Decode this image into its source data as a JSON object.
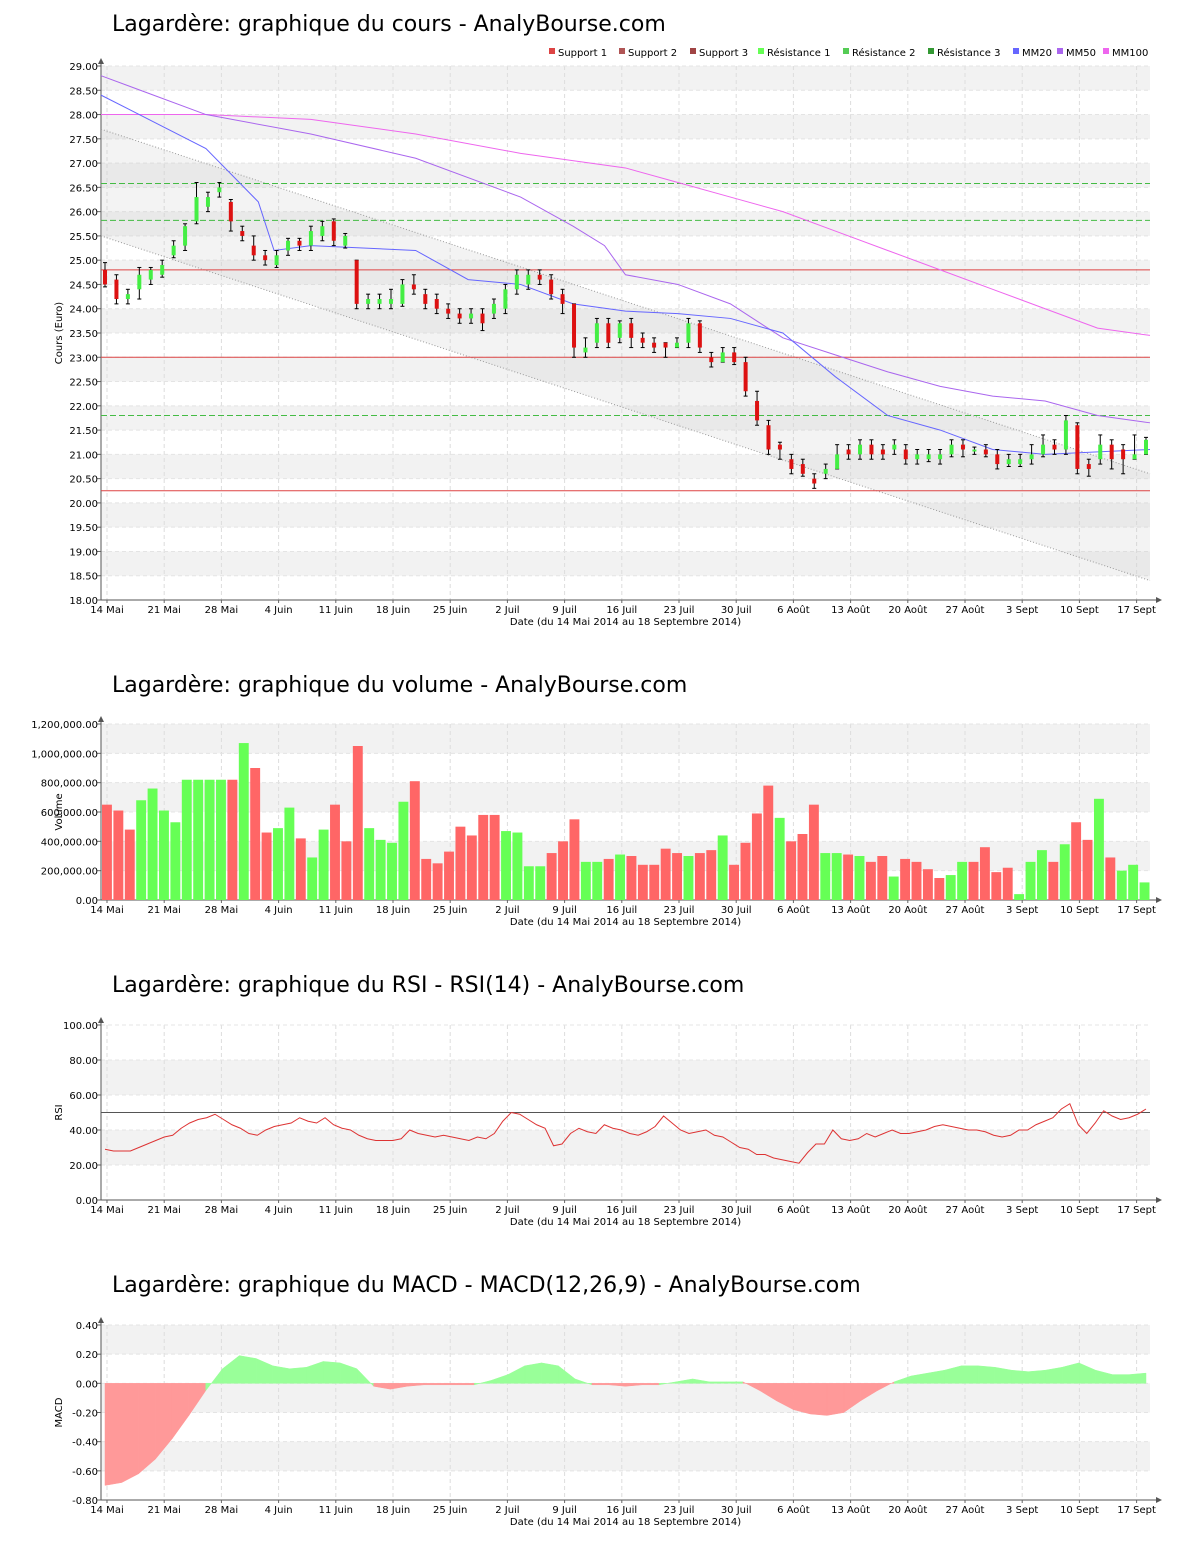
{
  "titles": {
    "price": "Lagardère: graphique du cours - AnalyBourse.com",
    "volume": "Lagardère: graphique du volume - AnalyBourse.com",
    "rsi": "Lagardère: graphique du RSI - RSI(14) - AnalyBourse.com",
    "macd": "Lagardère: graphique du MACD - MACD(12,26,9) - AnalyBourse.com"
  },
  "xlabel": "Date (du 14 Mai 2014 au 18 Septembre 2014)",
  "date_ticks": [
    "14 Mai",
    "21 Mai",
    "28 Mai",
    "4 Juin",
    "11 Juin",
    "18 Juin",
    "25 Juin",
    "2 Juil",
    "9 Juil",
    "16 Juil",
    "23 Juil",
    "30 Juil",
    "6 Août",
    "13 Août",
    "20 Août",
    "27 Août",
    "3 Sept",
    "10 Sept",
    "17 Sept"
  ],
  "colors": {
    "up": "#44ee44",
    "down": "#dd1111",
    "support": "#dd4444",
    "resistance": "#44bb44",
    "mm20": "#6666ff",
    "mm50": "#aa66ee",
    "mm100": "#ee66ee",
    "vol_up": "#66ff55",
    "vol_down": "#ff6666",
    "rsi": "#dd3333",
    "macd_pos": "#99ff99",
    "macd_neg": "#ff9999"
  },
  "chart_data": [
    {
      "type": "candlestick",
      "title": "Lagardère: graphique du cours - AnalyBourse.com",
      "ylabel": "Cours (Euro)",
      "xlabel": "Date (du 14 Mai 2014 au 18 Septembre 2014)",
      "ylim": [
        18,
        29
      ],
      "yticks": [
        "18.00",
        "18.50",
        "19.00",
        "19.50",
        "20.00",
        "20.50",
        "21.00",
        "21.50",
        "22.00",
        "22.50",
        "23.00",
        "23.50",
        "24.00",
        "24.50",
        "25.00",
        "25.50",
        "26.00",
        "26.50",
        "27.00",
        "27.50",
        "28.00",
        "28.50",
        "29.00"
      ],
      "legend": [
        "Support 1",
        "Support 2",
        "Support 3",
        "Résistance 1",
        "Résistance 2",
        "Résistance 3",
        "MM20",
        "MM50",
        "MM100"
      ],
      "legend_position": "top-right",
      "levels": {
        "support": [
          20.25,
          23.0,
          24.8
        ],
        "resistance": [
          21.8,
          25.82,
          26.58
        ]
      },
      "channel": {
        "upper": [
          27.7,
          20.6
        ],
        "lower": [
          25.5,
          18.4
        ]
      },
      "candles": [
        [
          24.8,
          24.5,
          24.95,
          24.45
        ],
        [
          24.6,
          24.2,
          24.7,
          24.1
        ],
        [
          24.2,
          24.3,
          24.4,
          24.1
        ],
        [
          24.4,
          24.7,
          24.85,
          24.2
        ],
        [
          24.6,
          24.8,
          24.85,
          24.5
        ],
        [
          24.7,
          24.9,
          25.0,
          24.65
        ],
        [
          25.1,
          25.3,
          25.4,
          25.05
        ],
        [
          25.3,
          25.7,
          25.75,
          25.2
        ],
        [
          25.8,
          26.3,
          26.6,
          25.75
        ],
        [
          26.1,
          26.3,
          26.4,
          26.0
        ],
        [
          26.4,
          26.5,
          26.6,
          26.3
        ],
        [
          26.2,
          25.8,
          26.25,
          25.6
        ],
        [
          25.6,
          25.5,
          25.7,
          25.4
        ],
        [
          25.3,
          25.1,
          25.5,
          25.0
        ],
        [
          25.1,
          25.0,
          25.2,
          24.9
        ],
        [
          24.9,
          25.1,
          25.2,
          24.85
        ],
        [
          25.2,
          25.4,
          25.45,
          25.1
        ],
        [
          25.4,
          25.3,
          25.45,
          25.2
        ],
        [
          25.3,
          25.6,
          25.7,
          25.2
        ],
        [
          25.5,
          25.7,
          25.8,
          25.4
        ],
        [
          25.8,
          25.4,
          25.85,
          25.3
        ],
        [
          25.3,
          25.5,
          25.55,
          25.25
        ],
        [
          25.0,
          24.1,
          25.0,
          24.0
        ],
        [
          24.1,
          24.2,
          24.3,
          24.0
        ],
        [
          24.1,
          24.2,
          24.3,
          24.0
        ],
        [
          24.1,
          24.2,
          24.4,
          24.0
        ],
        [
          24.1,
          24.5,
          24.6,
          24.05
        ],
        [
          24.5,
          24.4,
          24.7,
          24.3
        ],
        [
          24.3,
          24.1,
          24.4,
          24.0
        ],
        [
          24.2,
          24.0,
          24.3,
          23.9
        ],
        [
          24.0,
          23.9,
          24.1,
          23.8
        ],
        [
          23.9,
          23.8,
          24.0,
          23.7
        ],
        [
          23.8,
          23.9,
          24.0,
          23.7
        ],
        [
          23.9,
          23.7,
          24.0,
          23.55
        ],
        [
          23.9,
          24.1,
          24.2,
          23.8
        ],
        [
          24.0,
          24.4,
          24.5,
          23.9
        ],
        [
          24.4,
          24.7,
          24.8,
          24.3
        ],
        [
          24.5,
          24.7,
          24.8,
          24.4
        ],
        [
          24.7,
          24.6,
          24.8,
          24.5
        ],
        [
          24.6,
          24.3,
          24.7,
          24.2
        ],
        [
          24.3,
          24.1,
          24.4,
          23.9
        ],
        [
          24.1,
          23.2,
          24.1,
          23.0
        ],
        [
          23.1,
          23.2,
          23.4,
          23.0
        ],
        [
          23.3,
          23.7,
          23.8,
          23.2
        ],
        [
          23.7,
          23.3,
          23.8,
          23.2
        ],
        [
          23.4,
          23.7,
          23.75,
          23.3
        ],
        [
          23.7,
          23.4,
          23.8,
          23.2
        ],
        [
          23.4,
          23.3,
          23.5,
          23.2
        ],
        [
          23.3,
          23.2,
          23.4,
          23.1
        ],
        [
          23.3,
          23.2,
          23.3,
          23.0
        ],
        [
          23.2,
          23.3,
          23.4,
          23.2
        ],
        [
          23.3,
          23.7,
          23.8,
          23.2
        ],
        [
          23.7,
          23.2,
          23.75,
          23.1
        ],
        [
          23.0,
          22.9,
          23.1,
          22.8
        ],
        [
          22.9,
          23.1,
          23.2,
          22.9
        ],
        [
          23.1,
          22.9,
          23.2,
          22.85
        ],
        [
          22.9,
          22.3,
          23.0,
          22.2
        ],
        [
          22.1,
          21.7,
          22.3,
          21.6
        ],
        [
          21.6,
          21.1,
          21.7,
          21.0
        ],
        [
          21.2,
          21.1,
          21.25,
          20.9
        ],
        [
          20.9,
          20.7,
          21.0,
          20.6
        ],
        [
          20.8,
          20.6,
          20.9,
          20.55
        ],
        [
          20.5,
          20.4,
          20.6,
          20.3
        ],
        [
          20.6,
          20.7,
          20.8,
          20.5
        ],
        [
          20.7,
          21.0,
          21.2,
          20.7
        ],
        [
          21.1,
          21.0,
          21.2,
          20.9
        ],
        [
          21.0,
          21.2,
          21.3,
          20.9
        ],
        [
          21.2,
          21.0,
          21.3,
          20.9
        ],
        [
          21.1,
          21.0,
          21.2,
          20.9
        ],
        [
          21.1,
          21.2,
          21.3,
          21.0
        ],
        [
          21.1,
          20.9,
          21.2,
          20.8
        ],
        [
          20.9,
          21.0,
          21.1,
          20.8
        ],
        [
          20.9,
          21.0,
          21.1,
          20.85
        ],
        [
          20.9,
          21.0,
          21.1,
          20.8
        ],
        [
          21.0,
          21.2,
          21.3,
          20.95
        ],
        [
          21.2,
          21.1,
          21.3,
          20.95
        ],
        [
          21.1,
          21.1,
          21.15,
          21.0
        ],
        [
          21.1,
          21.0,
          21.2,
          20.95
        ],
        [
          21.0,
          20.8,
          21.1,
          20.7
        ],
        [
          20.8,
          20.9,
          21.0,
          20.75
        ],
        [
          20.8,
          20.9,
          21.0,
          20.75
        ],
        [
          20.9,
          21.0,
          21.2,
          20.8
        ],
        [
          21.0,
          21.2,
          21.4,
          20.95
        ],
        [
          21.2,
          21.1,
          21.3,
          21.0
        ],
        [
          21.1,
          21.7,
          21.8,
          21.0
        ],
        [
          21.6,
          20.7,
          21.65,
          20.6
        ],
        [
          20.8,
          20.7,
          20.9,
          20.55
        ],
        [
          20.9,
          21.2,
          21.4,
          20.8
        ],
        [
          21.2,
          20.9,
          21.3,
          20.7
        ],
        [
          21.1,
          20.9,
          21.2,
          20.6
        ],
        [
          20.9,
          21.0,
          21.4,
          20.9
        ],
        [
          21.0,
          21.3,
          21.35,
          21.0
        ]
      ],
      "mm20": [
        [
          0,
          28.4
        ],
        [
          0.1,
          27.3
        ],
        [
          0.15,
          26.2
        ],
        [
          0.165,
          25.2
        ],
        [
          0.2,
          25.3
        ],
        [
          0.3,
          25.2
        ],
        [
          0.35,
          24.6
        ],
        [
          0.4,
          24.5
        ],
        [
          0.45,
          24.1
        ],
        [
          0.5,
          23.95
        ],
        [
          0.55,
          23.9
        ],
        [
          0.6,
          23.8
        ],
        [
          0.65,
          23.5
        ],
        [
          0.7,
          22.6
        ],
        [
          0.75,
          21.8
        ],
        [
          0.8,
          21.5
        ],
        [
          0.85,
          21.1
        ],
        [
          0.9,
          21.0
        ],
        [
          0.95,
          21.05
        ],
        [
          1.0,
          21.1
        ]
      ],
      "mm50": [
        [
          0,
          28.8
        ],
        [
          0.05,
          28.4
        ],
        [
          0.1,
          28.0
        ],
        [
          0.2,
          27.6
        ],
        [
          0.3,
          27.1
        ],
        [
          0.4,
          26.3
        ],
        [
          0.45,
          25.7
        ],
        [
          0.48,
          25.3
        ],
        [
          0.5,
          24.7
        ],
        [
          0.55,
          24.5
        ],
        [
          0.6,
          24.1
        ],
        [
          0.65,
          23.4
        ],
        [
          0.7,
          23.05
        ],
        [
          0.75,
          22.7
        ],
        [
          0.8,
          22.4
        ],
        [
          0.85,
          22.2
        ],
        [
          0.9,
          22.1
        ],
        [
          0.95,
          21.8
        ],
        [
          1.0,
          21.65
        ]
      ],
      "mm100": [
        [
          0,
          28.0
        ],
        [
          0.1,
          28.0
        ],
        [
          0.2,
          27.9
        ],
        [
          0.3,
          27.6
        ],
        [
          0.4,
          27.2
        ],
        [
          0.5,
          26.9
        ],
        [
          0.55,
          26.6
        ],
        [
          0.6,
          26.3
        ],
        [
          0.65,
          26.0
        ],
        [
          0.7,
          25.6
        ],
        [
          0.75,
          25.2
        ],
        [
          0.8,
          24.8
        ],
        [
          0.85,
          24.4
        ],
        [
          0.9,
          24.0
        ],
        [
          0.95,
          23.6
        ],
        [
          1.0,
          23.45
        ]
      ]
    },
    {
      "type": "bar",
      "title": "Lagardère: graphique du volume - AnalyBourse.com",
      "ylabel": "Volume",
      "xlabel": "Date (du 14 Mai 2014 au 18 Septembre 2014)",
      "ylim": [
        0,
        1200000
      ],
      "yticks": [
        "0.00",
        "200,000.00",
        "400,000.00",
        "600,000.00",
        "800,000.00",
        "1,000,000.00",
        "1,200,000.00"
      ],
      "values": [
        650000,
        610000,
        480000,
        680000,
        760000,
        610000,
        530000,
        820000,
        820000,
        820000,
        820000,
        820000,
        1070000,
        900000,
        460000,
        490000,
        630000,
        420000,
        290000,
        480000,
        650000,
        400000,
        1050000,
        490000,
        410000,
        390000,
        670000,
        810000,
        280000,
        250000,
        330000,
        500000,
        440000,
        580000,
        580000,
        470000,
        460000,
        230000,
        230000,
        320000,
        400000,
        550000,
        260000,
        260000,
        280000,
        310000,
        300000,
        240000,
        240000,
        350000,
        320000,
        300000,
        320000,
        340000,
        440000,
        240000,
        390000,
        590000,
        780000,
        560000,
        400000,
        450000,
        650000,
        320000,
        320000,
        310000,
        300000,
        260000,
        300000,
        160000,
        280000,
        260000,
        210000,
        150000,
        170000,
        260000,
        260000,
        360000,
        190000,
        220000,
        40000,
        260000,
        340000,
        260000,
        380000,
        530000,
        410000,
        690000,
        290000,
        200000,
        240000,
        120000
      ],
      "up": [
        0,
        0,
        0,
        1,
        1,
        1,
        1,
        1,
        1,
        1,
        1,
        0,
        1,
        0,
        0,
        1,
        1,
        0,
        1,
        1,
        0,
        0,
        0,
        1,
        1,
        1,
        1,
        0,
        0,
        0,
        0,
        0,
        0,
        0,
        0,
        1,
        1,
        1,
        1,
        0,
        0,
        0,
        1,
        1,
        0,
        1,
        0,
        0,
        0,
        0,
        0,
        1,
        0,
        0,
        1,
        0,
        0,
        0,
        0,
        1,
        0,
        0,
        0,
        1,
        1,
        0,
        1,
        0,
        0,
        1,
        0,
        0,
        0,
        0,
        1,
        1,
        0,
        0,
        0,
        0,
        1,
        1,
        1,
        0,
        1,
        0,
        0,
        1,
        0,
        1,
        1,
        1
      ]
    },
    {
      "type": "line",
      "title": "Lagardère: graphique du RSI - RSI(14) - AnalyBourse.com",
      "ylabel": "RSI",
      "xlabel": "Date (du 14 Mai 2014 au 18 Septembre 2014)",
      "ylim": [
        0,
        100
      ],
      "yticks": [
        "0.00",
        "20.00",
        "40.00",
        "60.00",
        "80.00",
        "100.00"
      ],
      "reference_line": 50,
      "values": [
        29,
        28,
        28,
        28,
        30,
        32,
        34,
        36,
        37,
        41,
        44,
        46,
        47,
        49,
        46,
        43,
        41,
        38,
        37,
        40,
        42,
        43,
        44,
        47,
        45,
        44,
        47,
        43,
        41,
        40,
        37,
        35,
        34,
        34,
        34,
        35,
        40,
        38,
        37,
        36,
        37,
        36,
        35,
        34,
        36,
        35,
        38,
        45,
        50,
        49,
        46,
        43,
        41,
        31,
        32,
        38,
        41,
        39,
        38,
        43,
        41,
        40,
        38,
        37,
        39,
        42,
        48,
        44,
        40,
        38,
        39,
        40,
        37,
        36,
        33,
        30,
        29,
        26,
        26,
        24,
        23,
        22,
        21,
        27,
        32,
        32,
        40,
        35,
        34,
        35,
        38,
        36,
        38,
        40,
        38,
        38,
        39,
        40,
        42,
        43,
        42,
        41,
        40,
        40,
        39,
        37,
        36,
        37,
        40,
        40,
        43,
        45,
        47,
        52,
        55,
        43,
        38,
        44,
        51,
        48,
        46,
        47,
        49,
        52
      ]
    },
    {
      "type": "area",
      "title": "Lagardère: graphique du MACD - MACD(12,26,9) - AnalyBourse.com",
      "ylabel": "MACD",
      "xlabel": "Date (du 14 Mai 2014 au 18 Septembre 2014)",
      "ylim": [
        -0.8,
        0.4
      ],
      "yticks": [
        "-0.80",
        "-0.60",
        "-0.40",
        "-0.20",
        "0.00",
        "0.20",
        "0.40"
      ],
      "values": [
        -0.7,
        -0.68,
        -0.62,
        -0.52,
        -0.38,
        -0.22,
        -0.05,
        0.1,
        0.19,
        0.17,
        0.12,
        0.1,
        0.11,
        0.15,
        0.14,
        0.1,
        -0.02,
        -0.04,
        -0.02,
        -0.01,
        -0.01,
        -0.01,
        -0.01,
        0.02,
        0.06,
        0.12,
        0.14,
        0.12,
        0.03,
        -0.01,
        -0.01,
        -0.02,
        -0.01,
        -0.01,
        0.01,
        0.03,
        0.01,
        0.01,
        0.01,
        -0.05,
        -0.12,
        -0.18,
        -0.21,
        -0.22,
        -0.2,
        -0.12,
        -0.05,
        0.01,
        0.05,
        0.07,
        0.09,
        0.12,
        0.12,
        0.11,
        0.09,
        0.08,
        0.09,
        0.11,
        0.14,
        0.09,
        0.06,
        0.06,
        0.07
      ]
    }
  ]
}
